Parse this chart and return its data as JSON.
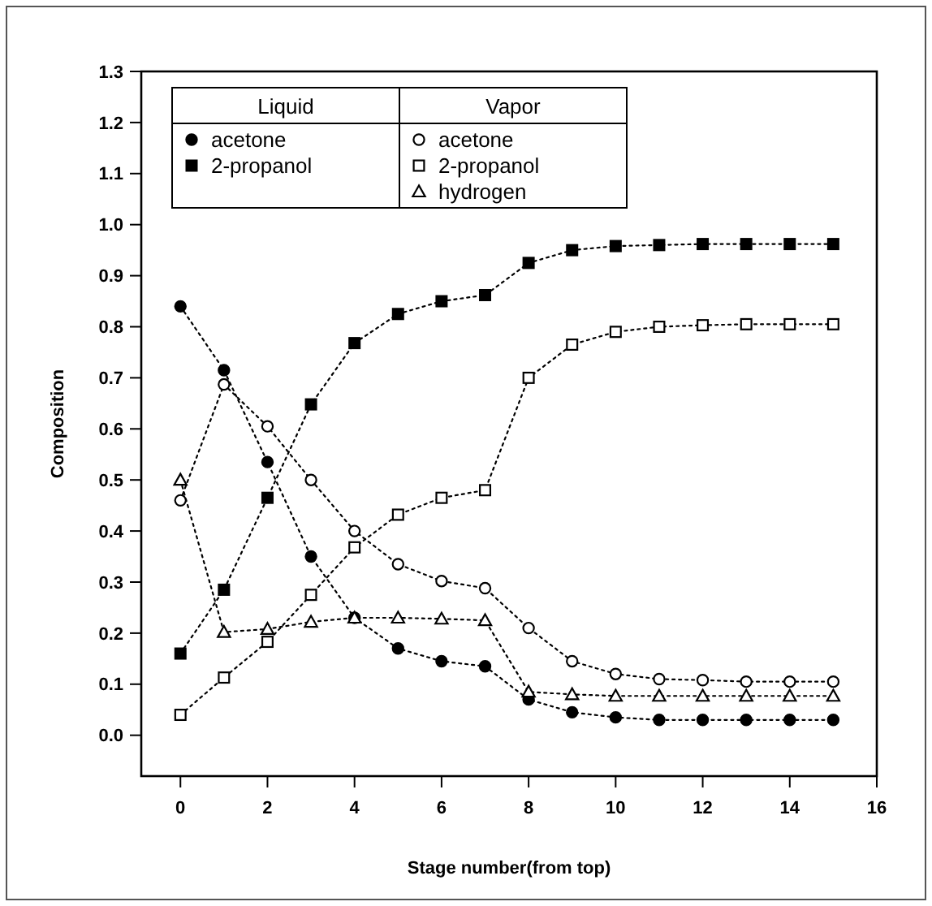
{
  "chart_data": {
    "type": "line",
    "xlabel": "Stage number(from top)",
    "ylabel": "Composition",
    "x": [
      0,
      1,
      2,
      3,
      4,
      5,
      6,
      7,
      8,
      9,
      10,
      11,
      12,
      13,
      14,
      15
    ],
    "xlim": [
      -0.9,
      16
    ],
    "xticks": [
      0,
      2,
      4,
      6,
      8,
      10,
      12,
      14,
      16
    ],
    "ylim": [
      -0.08,
      1.3
    ],
    "yticks": [
      {
        "value": 0,
        "label": "0.0"
      },
      0.1,
      0.2,
      0.3,
      0.4,
      0.5,
      0.6,
      0.7,
      0.8,
      0.9,
      {
        "value": 1,
        "label": "1.0"
      },
      1.1,
      1.2,
      1.3
    ],
    "annotations": [
      "Liquid",
      "Vapor"
    ],
    "legend": "top left",
    "line_style": "dotted",
    "grid": false,
    "series": [
      {
        "name": "acetone",
        "marker": "circle",
        "color": "#000000",
        "values": [
          0.84,
          0.715,
          0.535,
          0.35,
          0.23,
          0.17,
          0.145,
          0.135,
          0.07,
          0.045,
          0.035,
          0.03,
          0.03,
          0.03,
          0.03,
          0.03
        ]
      },
      {
        "name": "2-propanol",
        "marker": "square",
        "color": "#000000",
        "values": [
          0.16,
          0.285,
          0.465,
          0.648,
          0.768,
          0.825,
          0.85,
          0.862,
          0.925,
          0.95,
          0.958,
          0.96,
          0.962,
          0.962,
          0.962,
          0.962
        ]
      },
      {
        "name": "acetone",
        "marker": "circle",
        "color": "#000000",
        "values": [
          0.46,
          0.687,
          0.605,
          0.5,
          0.4,
          0.335,
          0.302,
          0.288,
          0.21,
          0.145,
          0.12,
          0.11,
          0.108,
          0.105,
          0.105,
          0.105
        ]
      },
      {
        "name": "2-propanol",
        "marker": "square",
        "color": "#000000",
        "values": [
          0.04,
          0.113,
          0.183,
          0.275,
          0.368,
          0.432,
          0.465,
          0.48,
          0.7,
          0.765,
          0.79,
          0.8,
          0.803,
          0.805,
          0.805,
          0.805
        ]
      },
      {
        "name": "hydrogen",
        "marker": "triangle",
        "color": "#000000",
        "values": [
          0.5,
          0.202,
          0.208,
          0.222,
          0.23,
          0.23,
          0.228,
          0.225,
          0.085,
          0.08,
          0.077,
          0.077,
          0.077,
          0.077,
          0.077,
          0.077
        ]
      }
    ]
  }
}
